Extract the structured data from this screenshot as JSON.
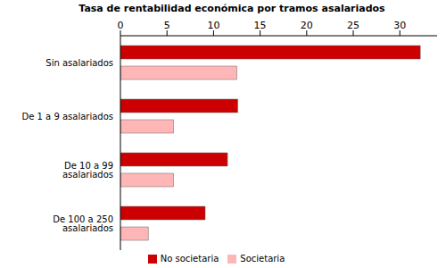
{
  "chart_data": {
    "type": "bar",
    "orientation": "horizontal",
    "title": "Tasa de rentabilidad económica por tramos asalariados",
    "categories": [
      "Sin asalariados",
      "De 1 a 9 asalariados",
      "De 10 a 99 asalariados",
      "De 100 a 250 asalariados"
    ],
    "series": [
      {
        "name": "No societaria",
        "color": "#cc0000",
        "values": [
          32.2,
          12.6,
          11.5,
          9.1
        ]
      },
      {
        "name": "Societaria",
        "color": "#ffb6b6",
        "values": [
          12.5,
          5.7,
          5.7,
          3.0
        ]
      }
    ],
    "xlim": [
      0,
      34
    ],
    "xticks": [
      0,
      5,
      10,
      15,
      20,
      25,
      30
    ],
    "legend": "bottom",
    "grid": false
  }
}
